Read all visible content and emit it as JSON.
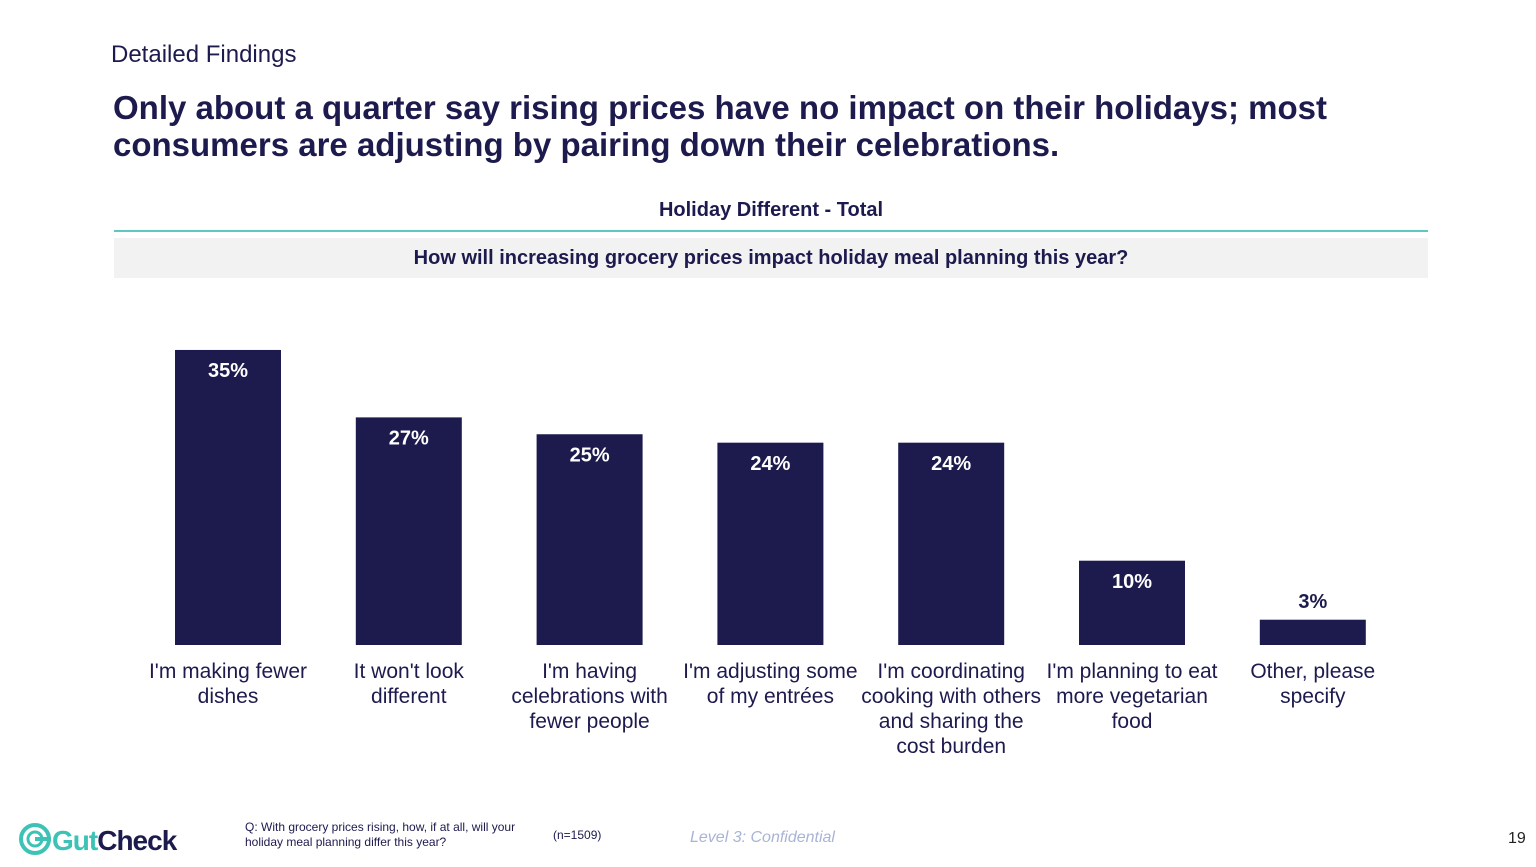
{
  "header": {
    "kicker": "Detailed Findings",
    "title": "Only about a quarter say rising prices have no impact on their holidays; most consumers are adjusting by pairing down their celebrations."
  },
  "chart_data": {
    "type": "bar",
    "title": "Holiday Different - Total",
    "subtitle": "How will increasing grocery prices impact holiday meal planning this year?",
    "categories": [
      "I'm making fewer dishes",
      "It won't look different",
      "I'm having celebrations with fewer people",
      "I'm adjusting some of my entrées",
      "I'm coordinating cooking with others and sharing the cost burden",
      "I'm planning to eat more vegetarian food",
      "Other, please specify"
    ],
    "values": [
      35,
      27,
      25,
      24,
      24,
      10,
      3
    ],
    "value_labels": [
      "35%",
      "27%",
      "25%",
      "24%",
      "24%",
      "10%",
      "3%"
    ],
    "color": "#1d1a4e"
  },
  "footer": {
    "logo_part1": "Gut",
    "logo_part2": "Check",
    "question": "Q: With grocery prices rising, how, if at all, will your holiday meal planning differ this year?",
    "sample": "(n=1509)",
    "confidentiality": "Level 3: Confidential",
    "page": "19"
  }
}
